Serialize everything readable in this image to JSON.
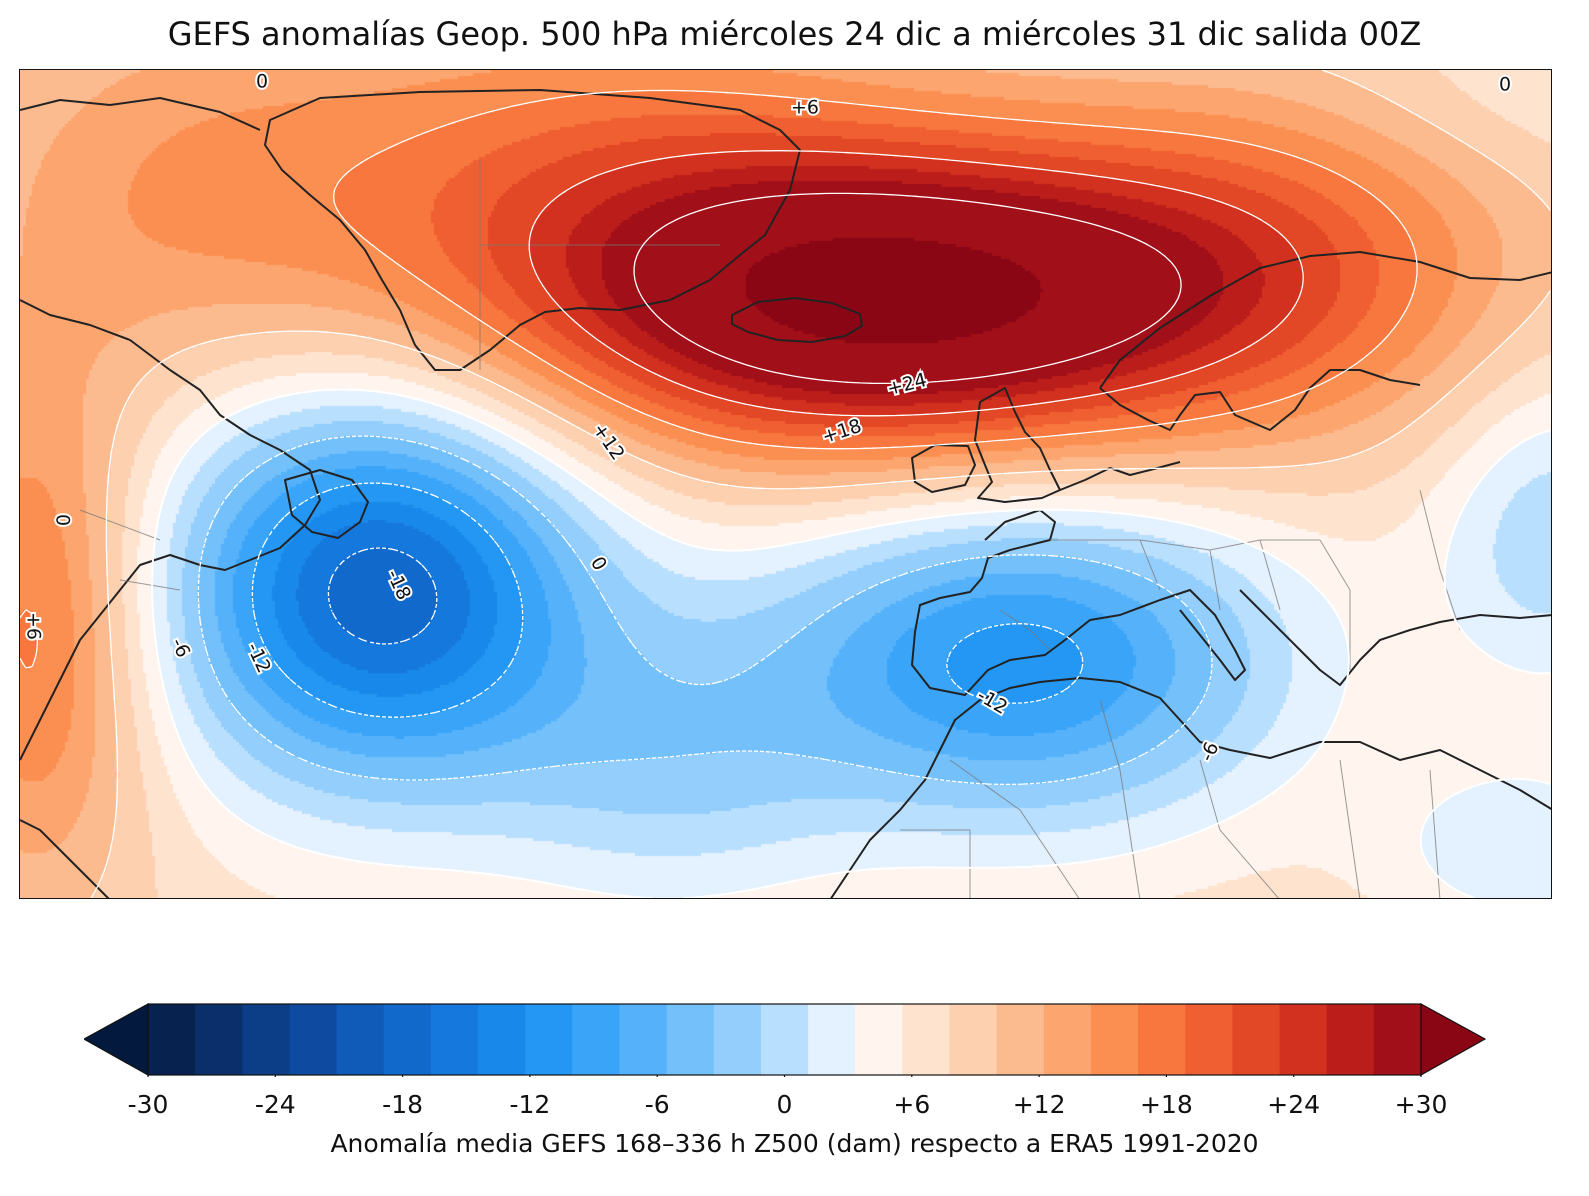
{
  "title": "GEFS anomalías Geop. 500 hPa miércoles 24 dic a miércoles 31 dic salida 00Z",
  "colorbar": {
    "label": "Anomalía media GEFS 168–336 h Z500 (dam) respecto a ERA5 1991-2020",
    "min": -30,
    "max": 30,
    "step": 2,
    "tick_labels": [
      "-30",
      "-24",
      "-18",
      "-12",
      "-6",
      "0",
      "+6",
      "+12",
      "+18",
      "+24",
      "+30"
    ],
    "extend": "both",
    "colors": [
      "#07224f",
      "#0a2f6b",
      "#0c3d87",
      "#0e4ba0",
      "#105ab8",
      "#1269cc",
      "#1478dd",
      "#1888ea",
      "#2497f4",
      "#3aa5f8",
      "#55b2fa",
      "#73c0fb",
      "#94cefc",
      "#b8dffd",
      "#e4f1fe",
      "#fff5ee",
      "#fee3cf",
      "#fdd0b0",
      "#fcbb8f",
      "#fca56f",
      "#fb8f52",
      "#f7773e",
      "#ef5f31",
      "#e34826",
      "#d2311f",
      "#bb1d1a",
      "#a10f19"
    ],
    "under_color": "#031a3e",
    "over_color": "#8a0615"
  },
  "contour_labels": [
    "0",
    "0",
    "+6",
    "+12",
    "+18",
    "+24",
    "0",
    "0",
    "+6",
    "-6",
    "-12",
    "-18",
    "-12",
    "-6"
  ],
  "map": {
    "region": "North Atlantic and Europe",
    "field": "Z500 anomaly",
    "centers": [
      {
        "type": "positive",
        "location": "Iceland",
        "value": 28
      },
      {
        "type": "negative",
        "location": "Newfoundland",
        "value": -19
      },
      {
        "type": "negative",
        "location": "Iberian Peninsula",
        "value": -13
      }
    ]
  }
}
